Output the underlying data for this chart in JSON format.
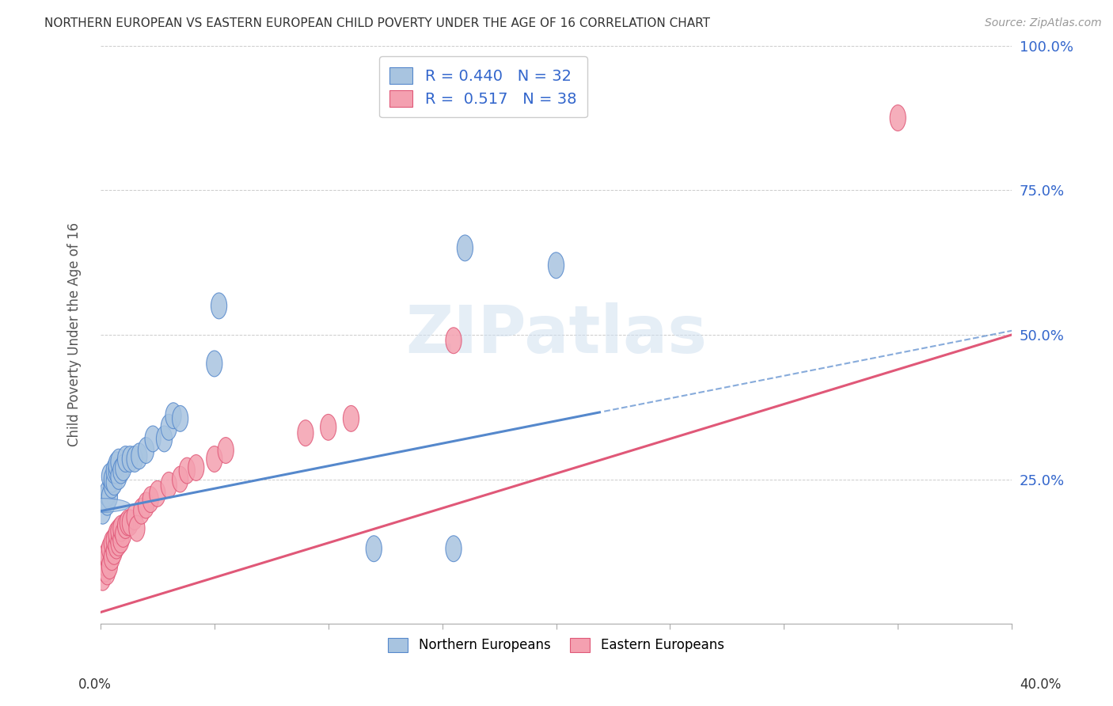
{
  "title": "NORTHERN EUROPEAN VS EASTERN EUROPEAN CHILD POVERTY UNDER THE AGE OF 16 CORRELATION CHART",
  "source": "Source: ZipAtlas.com",
  "ylabel": "Child Poverty Under the Age of 16",
  "xlim": [
    0,
    0.4
  ],
  "ylim": [
    0,
    1.0
  ],
  "ytick_vals": [
    0.0,
    0.25,
    0.5,
    0.75,
    1.0
  ],
  "ytick_labels": [
    "",
    "25.0%",
    "50.0%",
    "75.0%",
    "100.0%"
  ],
  "xtick_vals": [
    0.0,
    0.05,
    0.1,
    0.15,
    0.2,
    0.25,
    0.3,
    0.35,
    0.4
  ],
  "r_northern": 0.44,
  "n_northern": 32,
  "r_eastern": 0.517,
  "n_eastern": 38,
  "northern_color": "#a8c4e0",
  "eastern_color": "#f4a0b0",
  "northern_line_color": "#5588cc",
  "eastern_line_color": "#e05878",
  "background_color": "#ffffff",
  "grid_color": "#cccccc",
  "title_color": "#333333",
  "label_color": "#3366cc",
  "northern_line_intercept": 0.195,
  "northern_line_slope": 0.78,
  "eastern_line_intercept": 0.02,
  "eastern_line_slope": 1.2,
  "northern_x": [
    0.001,
    0.002,
    0.003,
    0.003,
    0.004,
    0.004,
    0.005,
    0.005,
    0.006,
    0.006,
    0.007,
    0.007,
    0.008,
    0.008,
    0.009,
    0.01,
    0.011,
    0.013,
    0.015,
    0.017,
    0.02,
    0.023,
    0.028,
    0.03,
    0.032,
    0.035,
    0.05,
    0.052,
    0.12,
    0.155,
    0.16,
    0.2
  ],
  "northern_y": [
    0.195,
    0.215,
    0.21,
    0.225,
    0.22,
    0.255,
    0.24,
    0.25,
    0.245,
    0.265,
    0.265,
    0.275,
    0.255,
    0.28,
    0.265,
    0.27,
    0.285,
    0.285,
    0.285,
    0.29,
    0.3,
    0.32,
    0.32,
    0.34,
    0.36,
    0.355,
    0.45,
    0.55,
    0.13,
    0.13,
    0.65,
    0.62
  ],
  "eastern_x": [
    0.001,
    0.002,
    0.002,
    0.003,
    0.003,
    0.004,
    0.004,
    0.005,
    0.005,
    0.006,
    0.006,
    0.007,
    0.007,
    0.008,
    0.008,
    0.009,
    0.009,
    0.01,
    0.011,
    0.012,
    0.013,
    0.015,
    0.016,
    0.018,
    0.02,
    0.022,
    0.025,
    0.03,
    0.035,
    0.038,
    0.042,
    0.05,
    0.055,
    0.09,
    0.1,
    0.11,
    0.155,
    0.35
  ],
  "eastern_y": [
    0.08,
    0.095,
    0.105,
    0.09,
    0.12,
    0.1,
    0.13,
    0.115,
    0.14,
    0.125,
    0.145,
    0.135,
    0.155,
    0.14,
    0.16,
    0.145,
    0.165,
    0.155,
    0.17,
    0.175,
    0.175,
    0.185,
    0.165,
    0.195,
    0.205,
    0.215,
    0.225,
    0.24,
    0.25,
    0.265,
    0.27,
    0.285,
    0.3,
    0.33,
    0.34,
    0.355,
    0.49,
    0.875
  ]
}
